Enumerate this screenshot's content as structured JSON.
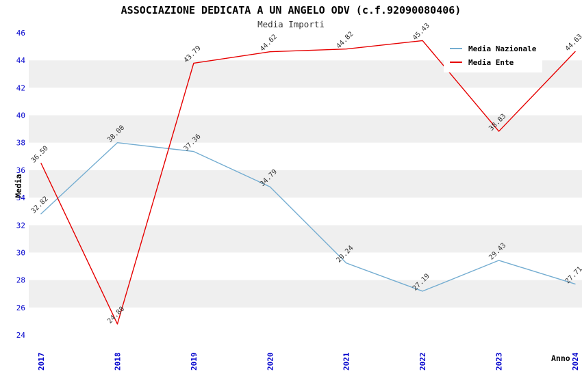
{
  "chart_data": {
    "type": "line",
    "title": "ASSOCIAZIONE DEDICATA A UN ANGELO ODV (c.f.92090080406)",
    "subtitle": "Media Importi",
    "xlabel": "Anno",
    "ylabel": "Media",
    "ylim": [
      24,
      46
    ],
    "ytick_step": 2,
    "grid": "horizontal-bands",
    "legend_position": "top-right",
    "categories": [
      "2017",
      "2018",
      "2019",
      "2020",
      "2021",
      "2022",
      "2023",
      "2024"
    ],
    "series": [
      {
        "name": "Media Nazionale",
        "color": "#74add1",
        "values": [
          32.82,
          38.0,
          37.36,
          34.79,
          29.24,
          27.19,
          29.43,
          27.71
        ]
      },
      {
        "name": "Media Ente",
        "color": "#e60000",
        "values": [
          36.5,
          24.8,
          43.79,
          44.62,
          44.82,
          45.43,
          38.83,
          44.63
        ]
      }
    ],
    "colors": {
      "axis_tick": "#0000cc",
      "band": "#efefef",
      "point_label": "#333333",
      "title": "#000000"
    }
  }
}
